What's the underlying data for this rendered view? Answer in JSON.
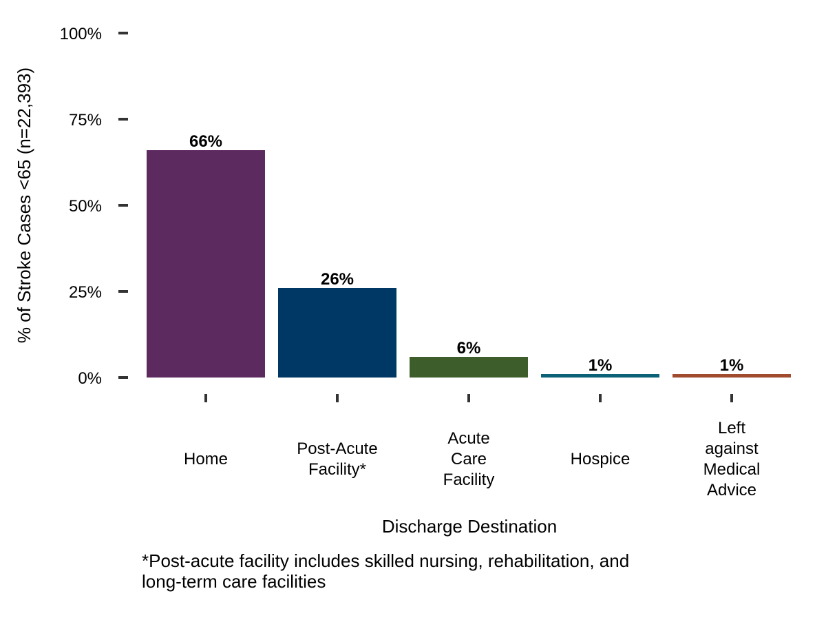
{
  "chart_data": {
    "type": "bar",
    "categories": [
      [
        "Home"
      ],
      [
        "Post-Acute",
        "Facility*"
      ],
      [
        "Acute",
        "Care",
        "Facility"
      ],
      [
        "Hospice"
      ],
      [
        "Left",
        "against",
        "Medical",
        "Advice"
      ]
    ],
    "values": [
      66,
      26,
      6,
      1,
      1
    ],
    "data_labels": [
      "66%",
      "26%",
      "6%",
      "1%",
      "1%"
    ],
    "colors": [
      "#5c2a5e",
      "#003865",
      "#3d5e2a",
      "#0b6177",
      "#a04a2e"
    ],
    "xlabel": "Discharge Destination",
    "ylabel": "% of Stroke Cases <65 (n=22,393)",
    "ylim": [
      0,
      100
    ],
    "yticks": [
      0,
      25,
      50,
      75,
      100
    ],
    "ytick_labels": [
      "0%",
      "25%",
      "50%",
      "75%",
      "100%"
    ],
    "grid": false,
    "legend": "none"
  },
  "footnote": [
    "*Post-acute facility includes skilled nursing, rehabilitation, and",
    "long-term care facilities"
  ]
}
